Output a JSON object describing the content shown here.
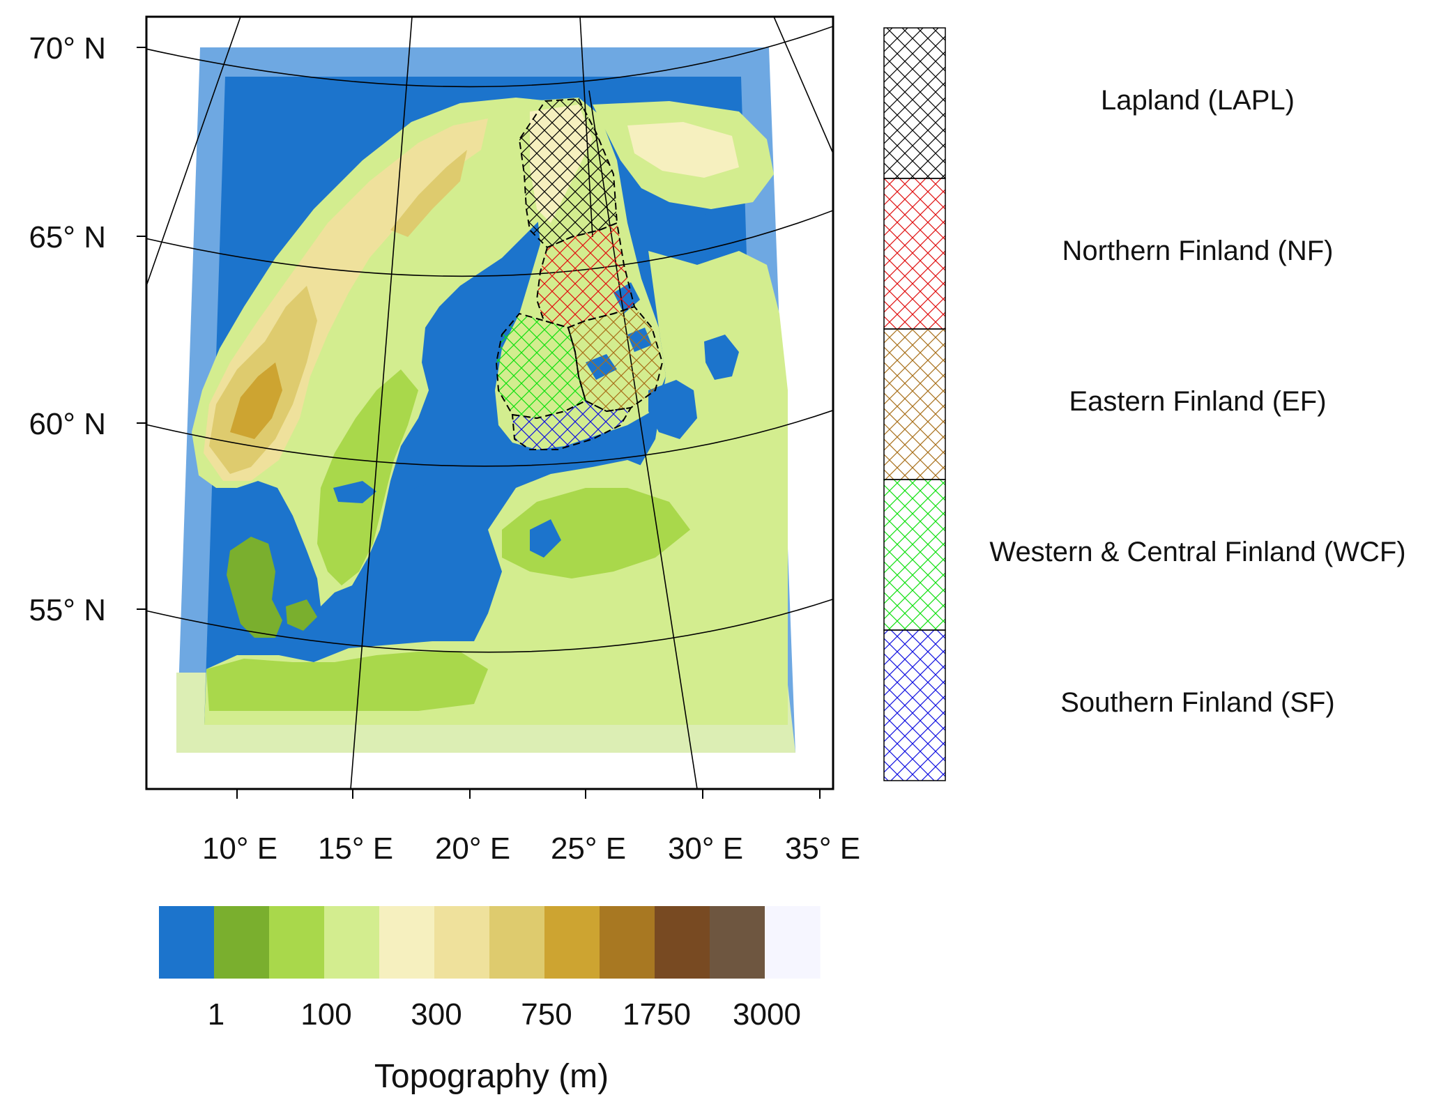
{
  "map": {
    "lat_labels": [
      "70° N",
      "65° N",
      "60° N",
      "55° N"
    ],
    "lon_labels": [
      "10° E",
      "15° E",
      "20° E",
      "25° E",
      "30° E",
      "35° E"
    ],
    "water_color": "#1c74cc",
    "outer_domain_color": "#6ea8e2",
    "graticule_color": "#000000"
  },
  "region_legend": {
    "items": [
      {
        "label": "Lapland (LAPL)",
        "color": "#000000"
      },
      {
        "label": "Northern Finland (NF)",
        "color": "#e01010"
      },
      {
        "label": "Eastern Finland (EF)",
        "color": "#a8701a"
      },
      {
        "label": "Western & Central Finland (WCF)",
        "color": "#10e010"
      },
      {
        "label": "Southern Finland (SF)",
        "color": "#1010e0"
      }
    ]
  },
  "colorbar": {
    "colors": [
      "#1c74cc",
      "#7aaf2e",
      "#a9d84b",
      "#d3ed8f",
      "#f6f0bf",
      "#efe19c",
      "#decb6e",
      "#cda431",
      "#a87822",
      "#784a22",
      "#6e5640",
      "#f6f6ff"
    ],
    "tick_labels": [
      "1",
      "100",
      "300",
      "750",
      "1750",
      "3000"
    ],
    "title": "Topography (m)"
  }
}
